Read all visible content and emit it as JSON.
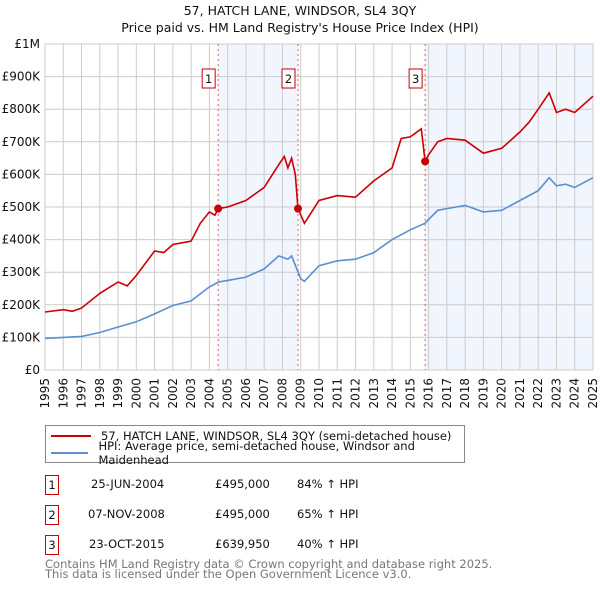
{
  "chart_data": {
    "type": "line",
    "title": "57, HATCH LANE, WINDSOR, SL4 3QY",
    "subtitle": "Price paid vs. HM Land Registry's House Price Index (HPI)",
    "ylim": [
      0,
      1000000
    ],
    "xlim": [
      1995,
      2025
    ],
    "yticks": [
      {
        "v": 0,
        "label": "£0"
      },
      {
        "v": 100000,
        "label": "£100K"
      },
      {
        "v": 200000,
        "label": "£200K"
      },
      {
        "v": 300000,
        "label": "£300K"
      },
      {
        "v": 400000,
        "label": "£400K"
      },
      {
        "v": 500000,
        "label": "£500K"
      },
      {
        "v": 600000,
        "label": "£600K"
      },
      {
        "v": 700000,
        "label": "£700K"
      },
      {
        "v": 800000,
        "label": "£800K"
      },
      {
        "v": 900000,
        "label": "£900K"
      },
      {
        "v": 1000000,
        "label": "£1M"
      }
    ],
    "xticks": [
      "1995",
      "1996",
      "1997",
      "1998",
      "1999",
      "2000",
      "2001",
      "2002",
      "2003",
      "2004",
      "2005",
      "2006",
      "2007",
      "2008",
      "2009",
      "2010",
      "2011",
      "2012",
      "2013",
      "2014",
      "2015",
      "2016",
      "2017",
      "2018",
      "2019",
      "2020",
      "2021",
      "2022",
      "2023",
      "2024",
      "2025"
    ],
    "grid": true,
    "shaded_ranges": [
      [
        2004.48,
        2008.85
      ],
      [
        2015.81,
        2025
      ]
    ],
    "series": [
      {
        "name": "57, HATCH LANE, WINDSOR, SL4 3QY (semi-detached house)",
        "color": "#cc0000",
        "x": [
          1995,
          1996,
          1996.5,
          1997,
          1998,
          1999,
          1999.5,
          2000,
          2001,
          2001.5,
          2002,
          2003,
          2003.5,
          2004,
          2004.3,
          2004.48,
          2005,
          2006,
          2007,
          2007.8,
          2008.1,
          2008.3,
          2008.5,
          2008.7,
          2008.85,
          2009.2,
          2010,
          2011,
          2012,
          2013,
          2014,
          2014.5,
          2015,
          2015.6,
          2015.81,
          2016,
          2016.5,
          2017,
          2018,
          2019,
          2020,
          2021,
          2021.5,
          2022,
          2022.6,
          2023,
          2023.5,
          2024,
          2025
        ],
        "y": [
          178000,
          185000,
          180000,
          190000,
          235000,
          270000,
          258000,
          290000,
          365000,
          360000,
          385000,
          395000,
          450000,
          485000,
          475000,
          495000,
          500000,
          520000,
          560000,
          630000,
          655000,
          620000,
          650000,
          600000,
          495000,
          450000,
          520000,
          535000,
          530000,
          580000,
          620000,
          710000,
          715000,
          740000,
          639950,
          660000,
          700000,
          710000,
          705000,
          665000,
          680000,
          730000,
          760000,
          800000,
          850000,
          790000,
          800000,
          790000,
          840000
        ]
      },
      {
        "name": "HPI: Average price, semi-detached house, Windsor and Maidenhead",
        "color": "#5b8fd4",
        "x": [
          1995,
          1996,
          1997,
          1998,
          1999,
          2000,
          2001,
          2002,
          2003,
          2004,
          2004.5,
          2005,
          2006,
          2007,
          2007.8,
          2008.3,
          2008.5,
          2009,
          2009.2,
          2010,
          2011,
          2012,
          2013,
          2014,
          2015,
          2015.8,
          2016.5,
          2017,
          2018,
          2019,
          2020,
          2021,
          2022,
          2022.6,
          2023,
          2023.5,
          2024,
          2025
        ],
        "y": [
          97000,
          100000,
          103000,
          115000,
          132000,
          148000,
          172000,
          198000,
          212000,
          255000,
          270000,
          275000,
          285000,
          310000,
          350000,
          340000,
          350000,
          280000,
          272000,
          320000,
          335000,
          340000,
          360000,
          400000,
          430000,
          450000,
          490000,
          495000,
          505000,
          485000,
          490000,
          520000,
          550000,
          590000,
          565000,
          570000,
          560000,
          590000
        ]
      }
    ],
    "sales": [
      {
        "n": "1",
        "x": 2004.48,
        "y": 495000,
        "date": "25-JUN-2004",
        "price": "£495,000",
        "hpi": "84% ↑ HPI"
      },
      {
        "n": "2",
        "x": 2008.85,
        "y": 495000,
        "date": "07-NOV-2008",
        "price": "£495,000",
        "hpi": "65% ↑ HPI"
      },
      {
        "n": "3",
        "x": 2015.81,
        "y": 639950,
        "date": "23-OCT-2015",
        "price": "£639,950",
        "hpi": "40% ↑ HPI"
      }
    ],
    "legend": [
      "57, HATCH LANE, WINDSOR, SL4 3QY (semi-detached house)",
      "HPI: Average price, semi-detached house, Windsor and Maidenhead"
    ],
    "legend_placement": "below"
  },
  "footer": {
    "line1": "Contains HM Land Registry data © Crown copyright and database right 2025.",
    "line2": "This data is licensed under the Open Government Licence v3.0."
  }
}
